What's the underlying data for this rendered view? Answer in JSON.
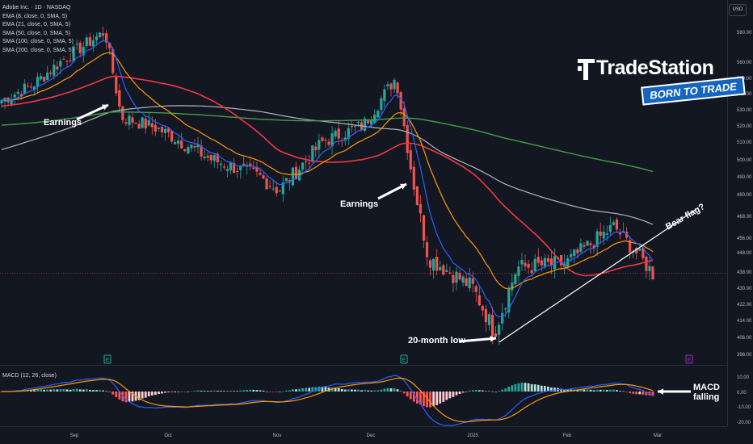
{
  "chart_meta": {
    "symbol_line": "Adobe Inc. · 1D · NASDAQ",
    "currency": "USD",
    "indicators": [
      "EMA (8, close, 0, SMA, 5)",
      "EMA (21, close, 0, SMA, 5)",
      "SMA (50, close, 0, SMA, 5)",
      "SMA (100, close, 0, SMA, 5)",
      "SMA (200, close, 0, SMA, 5)"
    ],
    "macd_label": "MACD (12, 26, close)",
    "brand": "TradeStation",
    "slogan": "BORN TO TRADE",
    "earnings_marker": "E"
  },
  "colors": {
    "background": "#131722",
    "up": "#26a69a",
    "down": "#ef5350",
    "ema8": "#2962ff",
    "ema21": "#ff9800",
    "sma50": "#f23645",
    "sma100": "#b2b5be",
    "sma200": "#43a047",
    "macd": "#2962ff",
    "signal": "#ff9800"
  },
  "annotations": {
    "earnings1": "Earnings",
    "earnings2": "Earnings",
    "low": "20-month low",
    "bear_flag": "Bear flag?",
    "macd_note": "MACD falling"
  },
  "chart_data": {
    "type": "candlestick",
    "x_axis_labels": [
      "Sep",
      "Oct",
      "Nov",
      "Dec",
      "2025",
      "Feb",
      "Mar"
    ],
    "y_ticks": [
      580,
      560,
      550,
      540,
      530,
      520,
      510,
      500,
      490,
      480,
      468,
      456,
      448,
      438,
      430,
      422,
      414,
      406,
      398
    ],
    "macd_ticks": [
      10,
      0,
      -10,
      -20
    ],
    "ohlc_close_anchors": [
      {
        "date": "Aug 16",
        "close": 535
      },
      {
        "date": "Aug 23",
        "close": 545
      },
      {
        "date": "Aug 30",
        "close": 562
      },
      {
        "date": "Sep 10",
        "close": 580
      },
      {
        "date": "Sep 13",
        "close": 525
      },
      {
        "date": "Sep 23",
        "close": 518
      },
      {
        "date": "Oct 10",
        "close": 500
      },
      {
        "date": "Oct 28",
        "close": 490
      },
      {
        "date": "Nov 5",
        "close": 482
      },
      {
        "date": "Nov 12",
        "close": 510
      },
      {
        "date": "Nov 26",
        "close": 520
      },
      {
        "date": "Dec 10",
        "close": 550
      },
      {
        "date": "Dec 12",
        "close": 490
      },
      {
        "date": "Dec 20",
        "close": 445
      },
      {
        "date": "Jan 2",
        "close": 430
      },
      {
        "date": "Jan 10",
        "close": 408
      },
      {
        "date": "Jan 22",
        "close": 440
      },
      {
        "date": "Feb 5",
        "close": 442
      },
      {
        "date": "Feb 19",
        "close": 462
      },
      {
        "date": "Feb 28",
        "close": 437
      }
    ],
    "levels": {
      "last_close": 437,
      "low_20_month": 408
    },
    "series": [
      {
        "name": "EMA (8, close, 0, SMA, 5)"
      },
      {
        "name": "EMA (21, close, 0, SMA, 5)"
      },
      {
        "name": "SMA (50, close, 0, SMA, 5)"
      },
      {
        "name": "SMA (100, close, 0, SMA, 5)"
      },
      {
        "name": "SMA (200, close, 0, SMA, 5)"
      }
    ],
    "ylim": [
      396,
      586
    ],
    "macd_ylim": [
      -24,
      12
    ]
  }
}
